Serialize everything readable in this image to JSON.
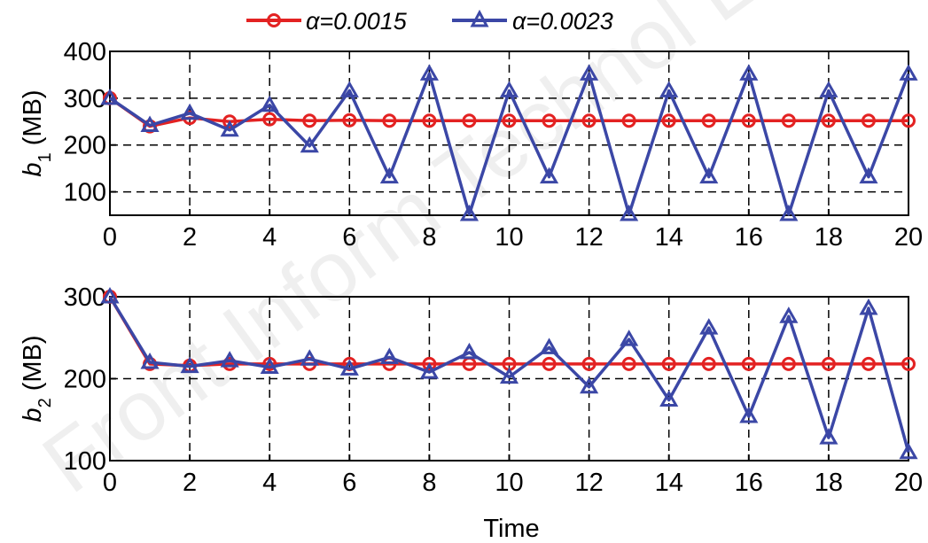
{
  "legend": [
    {
      "label": "α=0.0015",
      "color": "#e32222",
      "marker": "circle"
    },
    {
      "label": "α=0.0023",
      "color": "#3b47a6",
      "marker": "triangle"
    }
  ],
  "watermark": "Front Inform Technol El",
  "chart_data": [
    {
      "type": "line",
      "ylabel_var": "b",
      "ylabel_sub": "1",
      "ylabel_unit": " (MB)",
      "xlim": [
        0,
        20
      ],
      "ylim": [
        50,
        400
      ],
      "xticks": [
        0,
        2,
        4,
        6,
        8,
        10,
        12,
        14,
        16,
        18,
        20
      ],
      "yticks": [
        100,
        200,
        300,
        400
      ],
      "grid": true,
      "x": [
        0,
        1,
        2,
        3,
        4,
        5,
        6,
        7,
        8,
        9,
        10,
        11,
        12,
        13,
        14,
        15,
        16,
        17,
        18,
        19,
        20
      ],
      "series": [
        {
          "name": "α=0.0015",
          "color": "#e32222",
          "marker": "circle",
          "values": [
            300,
            240,
            258,
            250,
            255,
            252,
            253,
            252,
            252,
            252,
            252,
            252,
            252,
            252,
            252,
            252,
            252,
            252,
            252,
            252,
            252
          ]
        },
        {
          "name": "α=0.0023",
          "color": "#3b47a6",
          "marker": "triangle",
          "values": [
            300,
            242,
            268,
            232,
            285,
            198,
            316,
            132,
            352,
            52,
            316,
            132,
            352,
            52,
            316,
            132,
            352,
            52,
            316,
            132,
            352
          ]
        }
      ]
    },
    {
      "type": "line",
      "ylabel_var": "b",
      "ylabel_sub": "2",
      "ylabel_unit": " (MB)",
      "xlim": [
        0,
        20
      ],
      "ylim": [
        100,
        300
      ],
      "xticks": [
        0,
        2,
        4,
        6,
        8,
        10,
        12,
        14,
        16,
        18,
        20
      ],
      "yticks": [
        100,
        200,
        300
      ],
      "grid": true,
      "xlabel": "Time",
      "x": [
        0,
        1,
        2,
        3,
        4,
        5,
        6,
        7,
        8,
        9,
        10,
        11,
        12,
        13,
        14,
        15,
        16,
        17,
        18,
        19,
        20
      ],
      "series": [
        {
          "name": "α=0.0015",
          "color": "#e32222",
          "marker": "circle",
          "values": [
            300,
            218,
            216,
            218,
            218,
            218,
            218,
            218,
            218,
            218,
            218,
            218,
            218,
            218,
            218,
            218,
            218,
            218,
            218,
            218,
            218
          ]
        },
        {
          "name": "α=0.0023",
          "color": "#3b47a6",
          "marker": "triangle",
          "values": [
            300,
            220,
            215,
            222,
            214,
            224,
            212,
            226,
            208,
            232,
            202,
            238,
            190,
            248,
            174,
            262,
            154,
            276,
            128,
            286,
            110
          ]
        }
      ]
    }
  ]
}
